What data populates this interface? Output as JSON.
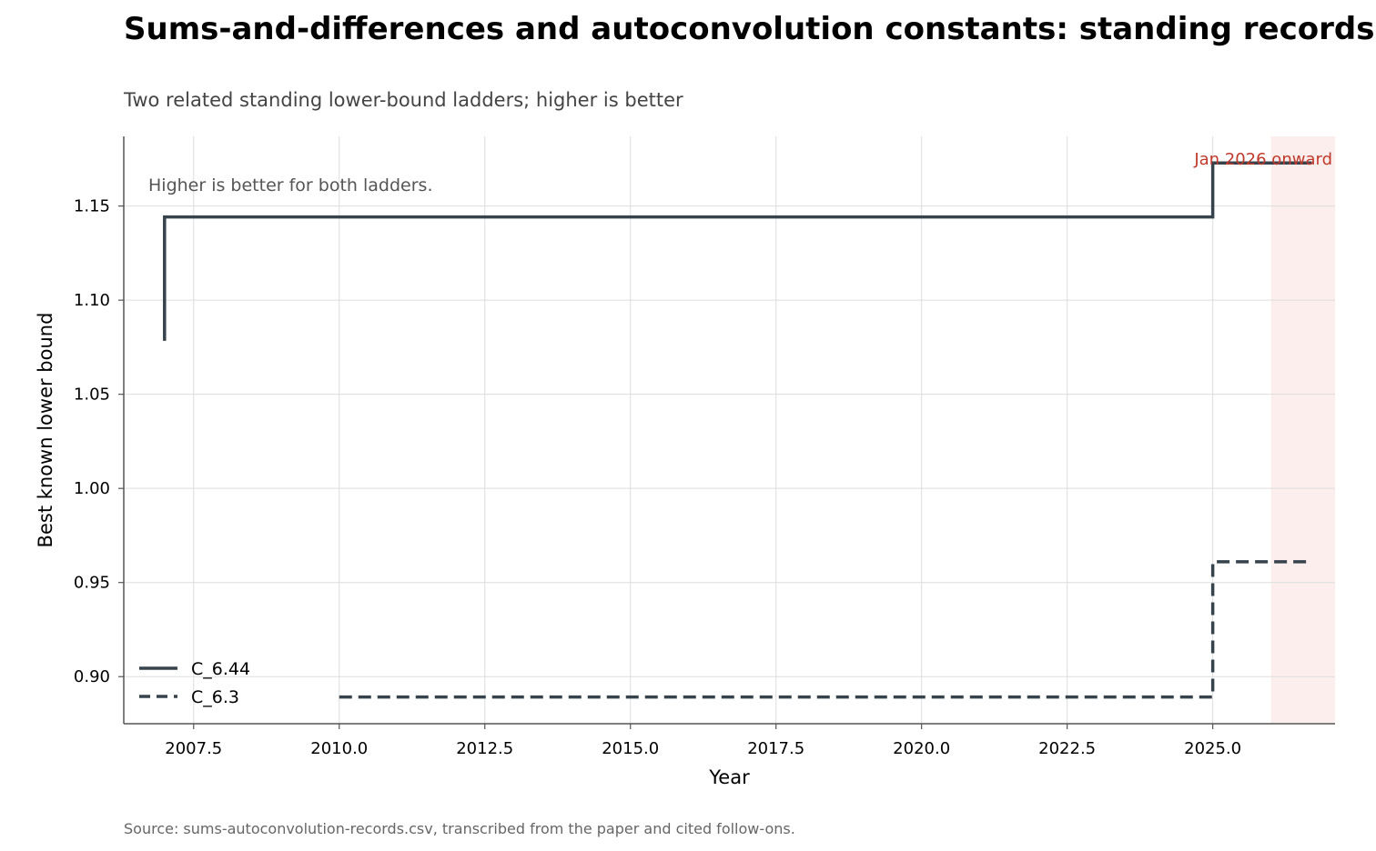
{
  "colors": {
    "line": "#37434c",
    "grid": "#dddddd",
    "axis": "#555555",
    "shade": "#fbeeec",
    "shade_label": "#c0392b",
    "note": "#555555"
  },
  "chart_data": {
    "type": "line",
    "title": "Sums-and-differences and autoconvolution constants: standing records",
    "subtitle": "Two related standing lower-bound ladders; higher is better",
    "xlabel": "Year",
    "ylabel": "Best known lower bound",
    "xlim": [
      2006.3,
      2027.1
    ],
    "ylim": [
      0.875,
      1.187
    ],
    "xticks": [
      2007.5,
      2010.0,
      2012.5,
      2015.0,
      2017.5,
      2020.0,
      2022.5,
      2025.0
    ],
    "xtick_labels": [
      "2007.5",
      "2010.0",
      "2012.5",
      "2015.0",
      "2017.5",
      "2020.0",
      "2022.5",
      "2025.0"
    ],
    "yticks": [
      0.9,
      0.95,
      1.0,
      1.05,
      1.1,
      1.15
    ],
    "ytick_labels": [
      "0.90",
      "0.95",
      "1.00",
      "1.05",
      "1.10",
      "1.15"
    ],
    "grid": true,
    "legend_position": "bottom-left",
    "step": "post",
    "series": [
      {
        "name": "C_6.44",
        "style": "solid",
        "x": [
          2007.0,
          2007.0,
          2025.0,
          2026.7
        ],
        "y": [
          1.0784,
          1.1442,
          1.1729,
          1.1729
        ]
      },
      {
        "name": "C_6.3",
        "style": "dashed",
        "x": [
          2010.0,
          2025.0,
          2026.7
        ],
        "y": [
          0.8892,
          0.961,
          0.961
        ]
      }
    ],
    "shaded_region": {
      "x_start": 2026.0,
      "x_end": 2027.1,
      "label": "Jan 2026 onward"
    },
    "annotations": [
      {
        "text": "Higher is better for both ladders."
      }
    ],
    "source": "Source: sums-autoconvolution-records.csv, transcribed from the paper and cited follow-ons."
  }
}
